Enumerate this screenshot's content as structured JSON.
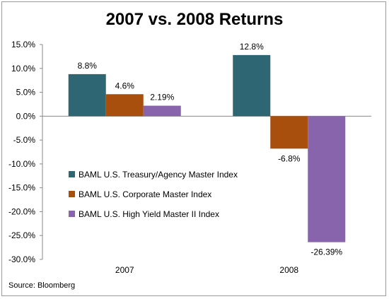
{
  "chart_data": {
    "type": "bar",
    "title": "2007 vs. 2008 Returns",
    "categories": [
      "2007",
      "2008"
    ],
    "series": [
      {
        "name": "BAML U.S. Treasury/Agency Master Index",
        "color": "#2e6773",
        "values": [
          8.8,
          12.8
        ],
        "labels": [
          "8.8%",
          "12.8%"
        ]
      },
      {
        "name": "BAML U.S. Corporate Master Index",
        "color": "#a94f0e",
        "values": [
          4.6,
          -6.8
        ],
        "labels": [
          "4.6%",
          "-6.8%"
        ]
      },
      {
        "name": "BAML U.S. High Yield Master II Index",
        "color": "#8864ad",
        "values": [
          2.19,
          -26.39
        ],
        "labels": [
          "2.19%",
          "-26.39%"
        ]
      }
    ],
    "ylim": [
      -30,
      15
    ],
    "yticks": [
      15,
      10,
      5,
      0,
      -5,
      -10,
      -15,
      -20,
      -25,
      -30
    ],
    "ytick_labels": [
      "15.0%",
      "10.0%",
      "5.0%",
      "0.0%",
      "-5.0%",
      "-10.0%",
      "-15.0%",
      "-20.0%",
      "-25.0%",
      "-30.0%"
    ],
    "grid": false,
    "legend_position": "left-middle"
  },
  "source": "Source: Bloomberg"
}
